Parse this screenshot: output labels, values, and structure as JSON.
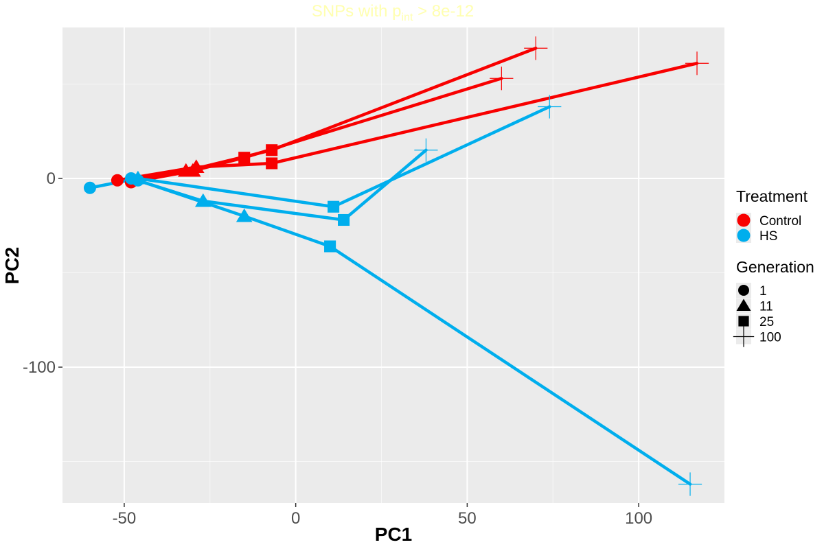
{
  "chart_data": {
    "type": "scatter",
    "title_main": "SNPs with p",
    "title_sub": "int",
    "title_tail": " > 8e-12",
    "xlabel": "PC1",
    "ylabel": "PC2",
    "xlim": [
      -68,
      125
    ],
    "ylim": [
      -172,
      80
    ],
    "x_ticks": [
      -50,
      0,
      50,
      100
    ],
    "y_ticks": [
      -100,
      0
    ],
    "x_minor": [
      -25,
      25,
      75
    ],
    "y_minor": [
      -150,
      -50,
      50
    ],
    "grid": true,
    "legend_position": "right",
    "colors": {
      "Control": "#f80000",
      "HS": "#00aeed",
      "title": "#ffffb0",
      "panel": "#ebebeb",
      "grid": "#ffffff"
    },
    "legends": {
      "treatment": {
        "title": "Treatment",
        "entries": [
          "Control",
          "HS"
        ]
      },
      "generation": {
        "title": "Generation",
        "entries": [
          "1",
          "11",
          "25",
          "100"
        ],
        "shapes": [
          "circle",
          "triangle",
          "square",
          "cross"
        ]
      }
    },
    "series": [
      {
        "treatment": "Control",
        "points": [
          [
            -48,
            -2,
            "1"
          ],
          [
            -30,
            4,
            "11"
          ],
          [
            -15,
            11,
            "25"
          ],
          [
            60,
            53,
            "100"
          ]
        ]
      },
      {
        "treatment": "Control",
        "points": [
          [
            -52,
            -1,
            "1"
          ],
          [
            -29,
            6,
            "11"
          ],
          [
            -7,
            8,
            "25"
          ],
          [
            117,
            61,
            "100"
          ]
        ]
      },
      {
        "treatment": "Control",
        "points": [
          [
            -47,
            -1,
            "1"
          ],
          [
            -32,
            4,
            "11"
          ],
          [
            -7,
            15,
            "25"
          ],
          [
            70,
            69,
            "100"
          ]
        ]
      },
      {
        "treatment": "HS",
        "points": [
          [
            -60,
            -5,
            "1"
          ],
          [
            -46,
            0,
            "11"
          ],
          [
            11,
            -15,
            "25"
          ],
          [
            74,
            38,
            "100"
          ]
        ]
      },
      {
        "treatment": "HS",
        "points": [
          [
            -48,
            0,
            "1"
          ],
          [
            -27,
            -12,
            "11"
          ],
          [
            14,
            -22,
            "25"
          ],
          [
            38,
            15,
            "100"
          ]
        ]
      },
      {
        "treatment": "HS",
        "points": [
          [
            -46,
            -1,
            "1"
          ],
          [
            -15,
            -20,
            "11"
          ],
          [
            10,
            -36,
            "25"
          ],
          [
            115,
            -162,
            "100"
          ]
        ]
      }
    ]
  }
}
